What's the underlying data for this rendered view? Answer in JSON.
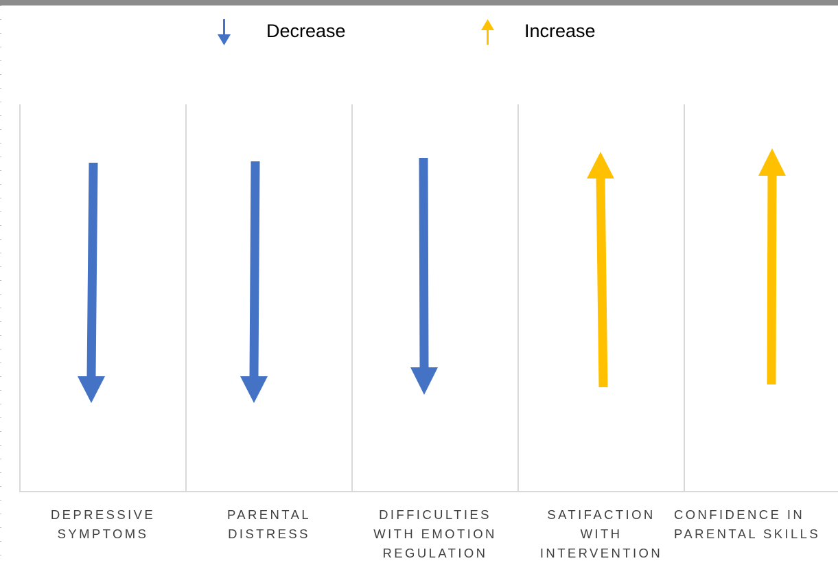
{
  "legend": {
    "decrease": {
      "label": "Decrease",
      "icon": "arrow-down-icon",
      "color": "#4472c4"
    },
    "increase": {
      "label": "Increase",
      "icon": "arrow-up-icon",
      "color": "#ffc000"
    }
  },
  "outcomes": [
    {
      "label": "DEPRESSIVE\nSYMPTOMS",
      "direction": "decrease",
      "icon": "arrow-down-icon"
    },
    {
      "label": "PARENTAL\nDISTRESS",
      "direction": "decrease",
      "icon": "arrow-down-icon"
    },
    {
      "label": "DIFFICULTIES\nWITH EMOTION\nREGULATION",
      "direction": "decrease",
      "icon": "arrow-down-icon"
    },
    {
      "label": "SATIFACTION\nWITH\nINTERVENTION",
      "direction": "increase",
      "icon": "arrow-up-icon"
    },
    {
      "label": "CONFIDENCE IN\nPARENTAL SKILLS",
      "direction": "increase",
      "icon": "arrow-up-icon"
    }
  ],
  "colors": {
    "gridline": "#d9d9d9",
    "label_text": "#404040"
  }
}
